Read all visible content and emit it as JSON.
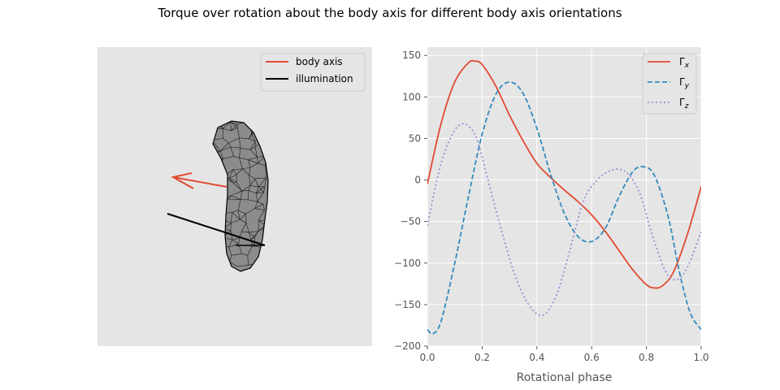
{
  "figure": {
    "title": "Torque over rotation about the body axis for different body axis orientations"
  },
  "colors": {
    "panel_bg": "#e5e5e5",
    "grid": "#ffffff",
    "tick_text": "#555555",
    "gamma_x": "#e24a33",
    "gamma_y": "#348abd",
    "gamma_z": "#988ed5",
    "body_axis": "#e24a33",
    "illumination": "#000000",
    "mesh_fill": "#8c8c8c",
    "mesh_edge": "#000000"
  },
  "scene_panel": {
    "legend": [
      "body axis",
      "illumination"
    ]
  },
  "chart_data": [
    {
      "type": "line",
      "title": "",
      "xlabel": "Rotational phase",
      "ylabel": "",
      "xlim": [
        0,
        1
      ],
      "ylim": [
        -200,
        160
      ],
      "xticks": [
        0.0,
        0.2,
        0.4,
        0.6,
        0.8,
        1.0
      ],
      "xtick_labels": [
        "0.0",
        "0.2",
        "0.4",
        "0.6",
        "0.8",
        "1.0"
      ],
      "yticks": [
        -200,
        -150,
        -100,
        -50,
        0,
        50,
        100,
        150
      ],
      "ytick_labels": [
        "−200",
        "−150",
        "−100",
        "−50",
        "0",
        "50",
        "100",
        "150"
      ],
      "grid": true,
      "legend_position": "top-right",
      "series": [
        {
          "name": "Γx",
          "label_base": "Γ",
          "label_sub": "x",
          "line_style": "solid",
          "x": [
            0.0,
            0.05,
            0.1,
            0.15,
            0.175,
            0.2,
            0.25,
            0.3,
            0.35,
            0.4,
            0.45,
            0.5,
            0.55,
            0.6,
            0.65,
            0.7,
            0.75,
            0.8,
            0.83,
            0.86,
            0.9,
            0.95,
            1.0
          ],
          "y": [
            -5,
            68,
            118,
            141,
            143,
            139,
            113,
            78,
            47,
            20,
            3,
            -12,
            -26,
            -42,
            -62,
            -85,
            -108,
            -126,
            -130,
            -127,
            -110,
            -65,
            -8
          ]
        },
        {
          "name": "Γy",
          "label_base": "Γ",
          "label_sub": "y",
          "line_style": "dashed",
          "x": [
            0.0,
            0.02,
            0.05,
            0.1,
            0.15,
            0.2,
            0.25,
            0.3,
            0.35,
            0.4,
            0.45,
            0.5,
            0.55,
            0.6,
            0.65,
            0.7,
            0.75,
            0.79,
            0.83,
            0.88,
            0.92,
            0.96,
            1.0
          ],
          "y": [
            -180,
            -185,
            -170,
            -100,
            -20,
            55,
            103,
            118,
            104,
            62,
            7,
            -40,
            -68,
            -74,
            -58,
            -20,
            10,
            16,
            5,
            -45,
            -110,
            -160,
            -180
          ]
        },
        {
          "name": "Γz",
          "label_base": "Γ",
          "label_sub": "z",
          "line_style": "dotted",
          "x": [
            0.0,
            0.05,
            0.1,
            0.14,
            0.18,
            0.22,
            0.27,
            0.32,
            0.37,
            0.42,
            0.47,
            0.52,
            0.57,
            0.62,
            0.66,
            0.7,
            0.74,
            0.78,
            0.82,
            0.87,
            0.91,
            0.95,
            1.0
          ],
          "y": [
            -55,
            20,
            60,
            67,
            50,
            2,
            -60,
            -115,
            -150,
            -163,
            -140,
            -85,
            -25,
            0,
            10,
            13,
            5,
            -20,
            -65,
            -110,
            -120,
            -105,
            -62
          ]
        }
      ]
    }
  ]
}
